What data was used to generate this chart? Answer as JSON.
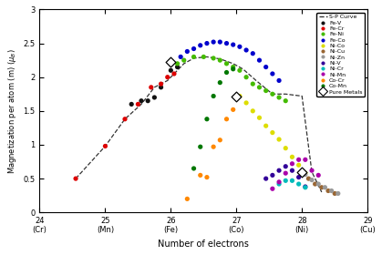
{
  "title": "",
  "xlabel": "Number of electrons",
  "xlim": [
    24,
    29
  ],
  "ylim": [
    0,
    3
  ],
  "xticks": [
    24,
    25,
    26,
    27,
    28,
    29
  ],
  "yticks": [
    0,
    0.5,
    1.0,
    1.5,
    2.0,
    2.5,
    3.0
  ],
  "sp_curve": {
    "x": [
      24.55,
      25.0,
      25.3,
      25.55,
      25.75,
      25.95,
      26.05,
      26.2,
      26.35,
      26.55,
      26.75,
      26.95,
      27.1,
      27.3,
      27.55,
      27.75,
      28.0,
      28.15,
      28.3
    ],
    "y": [
      0.5,
      0.98,
      1.38,
      1.6,
      1.85,
      1.95,
      2.05,
      2.2,
      2.28,
      2.3,
      2.27,
      2.2,
      2.12,
      1.95,
      1.75,
      1.75,
      1.72,
      0.6,
      0.3
    ]
  },
  "series": {
    "Fe-V": {
      "color": "#111111",
      "data": [
        [
          25.4,
          1.6
        ],
        [
          25.55,
          1.65
        ],
        [
          25.65,
          1.65
        ],
        [
          25.75,
          1.7
        ],
        [
          25.85,
          1.85
        ],
        [
          26.0,
          2.1
        ],
        [
          26.1,
          2.15
        ]
      ]
    },
    "Fe-Cr": {
      "color": "#dd0000",
      "data": [
        [
          24.55,
          0.5
        ],
        [
          25.0,
          0.98
        ],
        [
          25.3,
          1.38
        ],
        [
          25.5,
          1.6
        ],
        [
          25.7,
          1.85
        ],
        [
          25.85,
          1.9
        ],
        [
          25.95,
          2.0
        ],
        [
          26.05,
          2.05
        ]
      ]
    },
    "Fe-Ni": {
      "color": "#44bb00",
      "data": [
        [
          26.1,
          2.2
        ],
        [
          26.2,
          2.25
        ],
        [
          26.35,
          2.3
        ],
        [
          26.5,
          2.3
        ],
        [
          26.65,
          2.28
        ],
        [
          26.75,
          2.25
        ],
        [
          26.85,
          2.2
        ],
        [
          26.95,
          2.15
        ],
        [
          27.05,
          2.1
        ],
        [
          27.15,
          2.0
        ],
        [
          27.25,
          1.9
        ],
        [
          27.35,
          1.85
        ],
        [
          27.45,
          1.8
        ],
        [
          27.55,
          1.75
        ],
        [
          27.65,
          1.7
        ],
        [
          27.75,
          1.65
        ]
      ]
    },
    "Fe-Co": {
      "color": "#0000cc",
      "data": [
        [
          26.15,
          2.3
        ],
        [
          26.25,
          2.38
        ],
        [
          26.35,
          2.42
        ],
        [
          26.45,
          2.47
        ],
        [
          26.55,
          2.5
        ],
        [
          26.65,
          2.52
        ],
        [
          26.75,
          2.52
        ],
        [
          26.85,
          2.5
        ],
        [
          26.95,
          2.48
        ],
        [
          27.05,
          2.45
        ],
        [
          27.15,
          2.4
        ],
        [
          27.25,
          2.35
        ],
        [
          27.35,
          2.25
        ],
        [
          27.45,
          2.15
        ],
        [
          27.55,
          2.05
        ],
        [
          27.65,
          1.95
        ]
      ]
    },
    "Ni-Co": {
      "color": "#dddd00",
      "data": [
        [
          27.05,
          1.72
        ],
        [
          27.15,
          1.62
        ],
        [
          27.25,
          1.5
        ],
        [
          27.35,
          1.4
        ],
        [
          27.45,
          1.28
        ],
        [
          27.55,
          1.18
        ],
        [
          27.65,
          1.08
        ],
        [
          27.75,
          0.95
        ],
        [
          27.85,
          0.82
        ],
        [
          27.95,
          0.7
        ],
        [
          28.05,
          0.58
        ]
      ]
    },
    "Ni-Cu": {
      "color": "#996633",
      "data": [
        [
          28.1,
          0.5
        ],
        [
          28.2,
          0.42
        ],
        [
          28.3,
          0.37
        ],
        [
          28.4,
          0.32
        ],
        [
          28.5,
          0.28
        ]
      ]
    },
    "Ni-Zn": {
      "color": "#999999",
      "data": [
        [
          28.05,
          0.56
        ],
        [
          28.15,
          0.48
        ],
        [
          28.25,
          0.42
        ],
        [
          28.35,
          0.37
        ],
        [
          28.45,
          0.32
        ],
        [
          28.55,
          0.28
        ]
      ]
    },
    "Ni-V": {
      "color": "#330099",
      "data": [
        [
          27.45,
          0.5
        ],
        [
          27.55,
          0.55
        ],
        [
          27.65,
          0.62
        ],
        [
          27.75,
          0.68
        ],
        [
          27.85,
          0.62
        ],
        [
          27.95,
          0.52
        ],
        [
          28.05,
          0.38
        ]
      ]
    },
    "Ni-Cr": {
      "color": "#00bbbb",
      "data": [
        [
          27.65,
          0.42
        ],
        [
          27.75,
          0.47
        ],
        [
          27.85,
          0.47
        ],
        [
          27.95,
          0.42
        ],
        [
          28.05,
          0.37
        ]
      ]
    },
    "Ni-Mn": {
      "color": "#aa00aa",
      "data": [
        [
          27.55,
          0.35
        ],
        [
          27.65,
          0.45
        ],
        [
          27.75,
          0.58
        ],
        [
          27.85,
          0.72
        ],
        [
          27.95,
          0.78
        ],
        [
          28.05,
          0.78
        ],
        [
          28.15,
          0.62
        ],
        [
          28.25,
          0.55
        ]
      ]
    },
    "Co-Cr": {
      "color": "#ff8800",
      "data": [
        [
          26.25,
          0.2
        ],
        [
          26.45,
          0.55
        ],
        [
          26.55,
          0.52
        ],
        [
          26.65,
          0.97
        ],
        [
          26.75,
          1.07
        ],
        [
          26.85,
          1.38
        ],
        [
          26.95,
          1.52
        ]
      ]
    },
    "Co-Mn": {
      "color": "#007700",
      "data": [
        [
          26.35,
          0.65
        ],
        [
          26.45,
          0.97
        ],
        [
          26.55,
          1.38
        ],
        [
          26.65,
          1.72
        ],
        [
          26.75,
          1.92
        ],
        [
          26.85,
          2.07
        ],
        [
          26.95,
          2.12
        ]
      ]
    }
  },
  "pure_metals": {
    "Fe": [
      26.0,
      2.22
    ],
    "Co": [
      27.0,
      1.72
    ],
    "Ni": [
      28.0,
      0.6
    ]
  },
  "background_color": "#ffffff"
}
